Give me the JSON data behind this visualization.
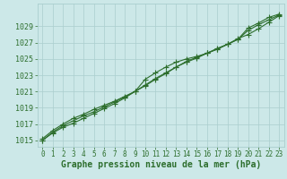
{
  "hours": [
    0,
    1,
    2,
    3,
    4,
    5,
    6,
    7,
    8,
    9,
    10,
    11,
    12,
    13,
    14,
    15,
    16,
    17,
    18,
    19,
    20,
    21,
    22,
    23
  ],
  "line1": [
    1015.2,
    1016.2,
    1017.0,
    1017.7,
    1018.2,
    1018.8,
    1019.3,
    1019.8,
    1020.4,
    1021.0,
    1021.7,
    1022.5,
    1023.2,
    1024.0,
    1024.6,
    1025.1,
    1025.7,
    1026.3,
    1026.8,
    1027.4,
    1028.8,
    1029.4,
    1030.1,
    1030.5
  ],
  "line2": [
    1015.0,
    1015.9,
    1016.6,
    1017.1,
    1017.7,
    1018.3,
    1018.9,
    1019.5,
    1020.2,
    1021.0,
    1021.8,
    1022.6,
    1023.3,
    1024.0,
    1024.7,
    1025.2,
    1025.7,
    1026.2,
    1026.8,
    1027.5,
    1028.0,
    1028.7,
    1029.5,
    1030.3
  ],
  "line3": [
    1015.0,
    1016.0,
    1016.8,
    1017.4,
    1018.0,
    1018.5,
    1019.1,
    1019.7,
    1020.3,
    1021.0,
    1022.5,
    1023.3,
    1024.0,
    1024.6,
    1025.0,
    1025.3,
    1025.7,
    1026.2,
    1026.8,
    1027.4,
    1028.5,
    1029.2,
    1029.8,
    1030.4
  ],
  "line_color": "#2d6e2d",
  "bg_color": "#cce8e8",
  "grid_color": "#aacece",
  "xlabel": "Graphe pression niveau de la mer (hPa)",
  "yticks": [
    1015,
    1017,
    1019,
    1021,
    1023,
    1025,
    1027,
    1029
  ],
  "ylim": [
    1014.2,
    1031.8
  ],
  "xlim": [
    -0.5,
    23.5
  ],
  "marker": "+",
  "markersize": 4,
  "linewidth": 0.8,
  "xlabel_fontsize": 7,
  "tick_fontsize": 6
}
